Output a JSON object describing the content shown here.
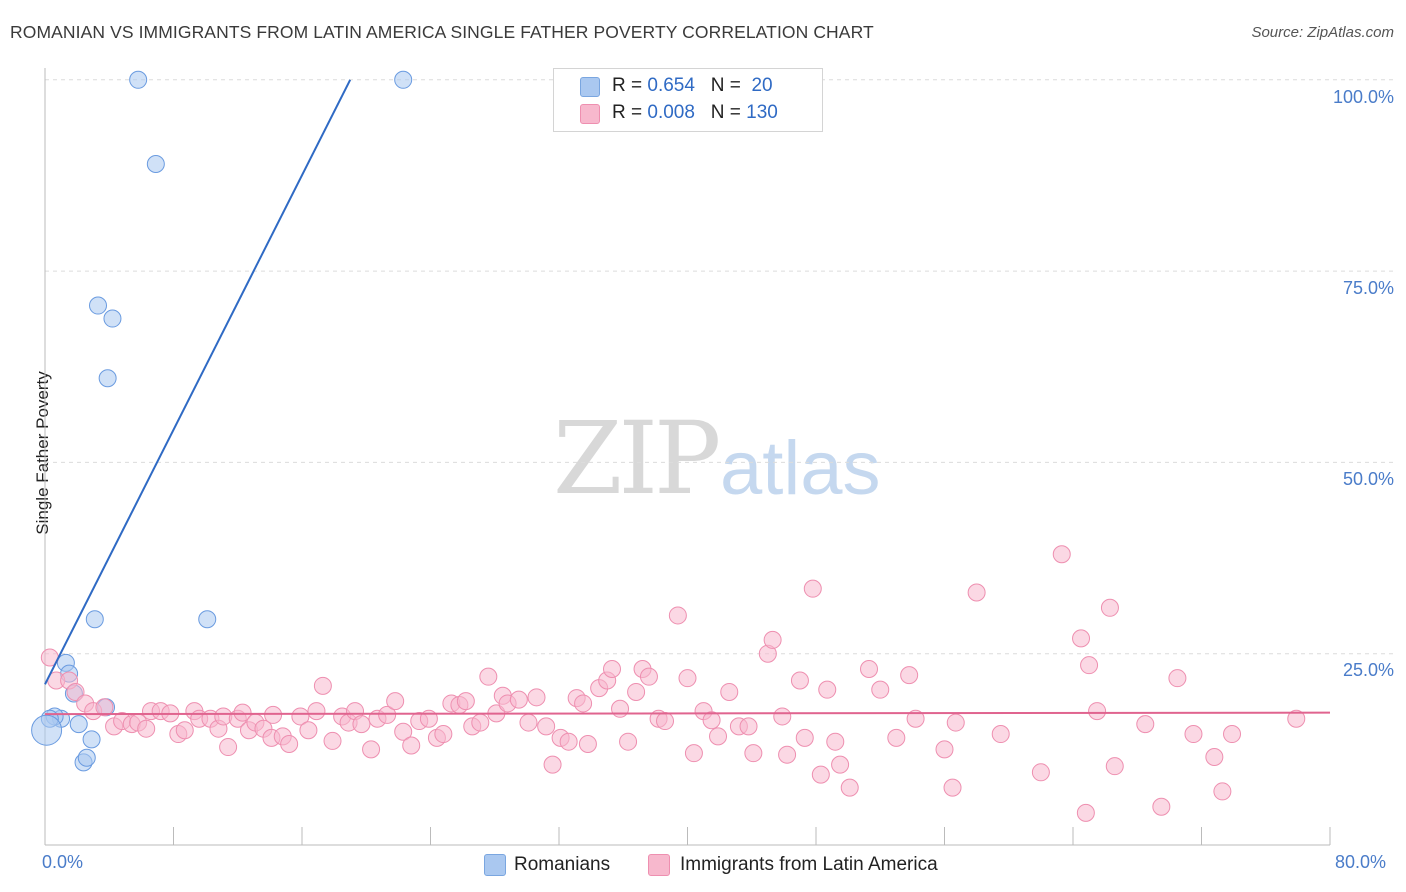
{
  "title": "ROMANIAN VS IMMIGRANTS FROM LATIN AMERICA SINGLE FATHER POVERTY CORRELATION CHART",
  "source": "Source: ZipAtlas.com",
  "watermark": {
    "zip": "ZIP",
    "atlas": "atlas"
  },
  "legend": {
    "r_label": "R =",
    "n_label": "N =",
    "series1": {
      "r": "0.654",
      "n": "20",
      "color": "#aac8f0"
    },
    "series2": {
      "r": "0.008",
      "n": "130",
      "color": "#f7b8cd"
    }
  },
  "bottom_legend": {
    "romanians": "Romanians",
    "latin": "Immigrants from Latin America"
  },
  "chart_data": {
    "type": "scatter",
    "title": "ROMANIAN VS IMMIGRANTS FROM LATIN AMERICA SINGLE FATHER POVERTY CORRELATION CHART",
    "xlabel": "",
    "ylabel": "Single Father Poverty",
    "xlim": [
      0,
      80
    ],
    "ylim": [
      0,
      104
    ],
    "y_ticks": [
      "100.0%",
      "75.0%",
      "50.0%",
      "25.0%"
    ],
    "y_tick_values": [
      100,
      75,
      50,
      25
    ],
    "x_tick_labels": [
      "0.0%",
      "80.0%"
    ],
    "series": [
      {
        "name": "Romanians",
        "color": "#6a9be0",
        "fill": "#aac8f0",
        "points": [
          [
            5.8,
            100
          ],
          [
            22.3,
            100
          ],
          [
            6.9,
            89
          ],
          [
            3.3,
            70.5
          ],
          [
            4.2,
            68.8
          ],
          [
            3.9,
            61
          ],
          [
            1.3,
            23.8
          ],
          [
            1.5,
            22.4
          ],
          [
            1.8,
            19.8
          ],
          [
            3.1,
            29.5
          ],
          [
            10.1,
            29.5
          ],
          [
            3.8,
            18
          ],
          [
            1.0,
            16.5
          ],
          [
            0.6,
            16.8
          ],
          [
            0.3,
            16.5
          ],
          [
            2.1,
            15.8
          ],
          [
            2.9,
            13.8
          ],
          [
            2.4,
            10.8
          ],
          [
            2.6,
            11.4
          ],
          [
            0.1,
            15
          ]
        ],
        "trend": {
          "x0": 0.0,
          "y0": 21,
          "x1": 19.0,
          "y1": 100
        }
      },
      {
        "name": "Immigrants from Latin America",
        "color": "#ee8fb0",
        "fill": "#f7b8cd",
        "points": [
          [
            0.3,
            24.5
          ],
          [
            0.7,
            21.5
          ],
          [
            1.5,
            21.5
          ],
          [
            1.9,
            20
          ],
          [
            2.5,
            18.5
          ],
          [
            3.0,
            17.5
          ],
          [
            3.7,
            18
          ],
          [
            4.3,
            15.5
          ],
          [
            4.8,
            16.2
          ],
          [
            5.4,
            15.8
          ],
          [
            5.8,
            16
          ],
          [
            6.3,
            15.2
          ],
          [
            6.6,
            17.5
          ],
          [
            7.2,
            17.5
          ],
          [
            7.8,
            17.2
          ],
          [
            8.3,
            14.5
          ],
          [
            8.7,
            15
          ],
          [
            9.3,
            17.5
          ],
          [
            9.6,
            16.5
          ],
          [
            10.3,
            16.5
          ],
          [
            10.8,
            15.2
          ],
          [
            11.1,
            16.8
          ],
          [
            11.4,
            12.8
          ],
          [
            12.0,
            16.5
          ],
          [
            12.3,
            17.3
          ],
          [
            12.7,
            15
          ],
          [
            13.1,
            16
          ],
          [
            13.6,
            15.2
          ],
          [
            14.1,
            14
          ],
          [
            14.2,
            17
          ],
          [
            14.8,
            14.2
          ],
          [
            15.2,
            13.2
          ],
          [
            15.9,
            16.8
          ],
          [
            16.4,
            15
          ],
          [
            16.9,
            17.5
          ],
          [
            17.3,
            20.8
          ],
          [
            17.9,
            13.6
          ],
          [
            18.5,
            16.8
          ],
          [
            18.9,
            16
          ],
          [
            19.3,
            17.5
          ],
          [
            19.7,
            15.8
          ],
          [
            20.3,
            12.5
          ],
          [
            20.7,
            16.5
          ],
          [
            21.3,
            17
          ],
          [
            21.8,
            18.8
          ],
          [
            22.3,
            14.8
          ],
          [
            22.8,
            13
          ],
          [
            23.3,
            16.2
          ],
          [
            23.9,
            16.5
          ],
          [
            24.4,
            14
          ],
          [
            24.8,
            14.5
          ],
          [
            25.3,
            18.5
          ],
          [
            25.8,
            18.3
          ],
          [
            26.2,
            18.8
          ],
          [
            26.6,
            15.5
          ],
          [
            27.1,
            16
          ],
          [
            27.6,
            22
          ],
          [
            28.1,
            17.2
          ],
          [
            28.5,
            19.5
          ],
          [
            28.8,
            18.5
          ],
          [
            29.5,
            19
          ],
          [
            30.1,
            16
          ],
          [
            30.6,
            19.3
          ],
          [
            31.2,
            15.5
          ],
          [
            31.6,
            10.5
          ],
          [
            32.1,
            14
          ],
          [
            32.6,
            13.5
          ],
          [
            33.1,
            19.2
          ],
          [
            33.5,
            18.5
          ],
          [
            33.8,
            13.2
          ],
          [
            34.5,
            20.5
          ],
          [
            35.0,
            21.5
          ],
          [
            35.3,
            23
          ],
          [
            35.8,
            17.8
          ],
          [
            36.3,
            13.5
          ],
          [
            36.8,
            20
          ],
          [
            37.2,
            23
          ],
          [
            37.6,
            22
          ],
          [
            38.2,
            16.5
          ],
          [
            38.6,
            16.2
          ],
          [
            39.4,
            30
          ],
          [
            40.0,
            21.8
          ],
          [
            40.4,
            12
          ],
          [
            41.0,
            17.5
          ],
          [
            41.5,
            16.3
          ],
          [
            41.9,
            14.2
          ],
          [
            42.6,
            20
          ],
          [
            43.2,
            15.5
          ],
          [
            43.8,
            15.5
          ],
          [
            44.1,
            12
          ],
          [
            45.0,
            25
          ],
          [
            45.3,
            26.8
          ],
          [
            45.9,
            16.8
          ],
          [
            46.2,
            11.8
          ],
          [
            47.0,
            21.5
          ],
          [
            47.3,
            14
          ],
          [
            47.8,
            33.5
          ],
          [
            48.3,
            9.2
          ],
          [
            48.7,
            20.3
          ],
          [
            49.2,
            13.5
          ],
          [
            49.5,
            10.5
          ],
          [
            50.1,
            7.5
          ],
          [
            51.3,
            23
          ],
          [
            52.0,
            20.3
          ],
          [
            53.0,
            14
          ],
          [
            53.8,
            22.2
          ],
          [
            54.2,
            16.5
          ],
          [
            56.0,
            12.5
          ],
          [
            56.5,
            7.5
          ],
          [
            56.7,
            16
          ],
          [
            58.0,
            33
          ],
          [
            59.5,
            14.5
          ],
          [
            62.0,
            9.5
          ],
          [
            63.3,
            38
          ],
          [
            64.5,
            27
          ],
          [
            65.0,
            23.5
          ],
          [
            65.5,
            17.5
          ],
          [
            66.3,
            31
          ],
          [
            66.6,
            10.3
          ],
          [
            68.5,
            15.8
          ],
          [
            69.5,
            5
          ],
          [
            70.5,
            21.8
          ],
          [
            71.5,
            14.5
          ],
          [
            72.8,
            11.5
          ],
          [
            73.3,
            7
          ],
          [
            73.9,
            14.5
          ],
          [
            77.9,
            16.5
          ],
          [
            64.8,
            4.2
          ]
        ],
        "trend": {
          "x0": 0,
          "y0": 17.1,
          "x1": 80,
          "y1": 17.3
        }
      }
    ]
  }
}
